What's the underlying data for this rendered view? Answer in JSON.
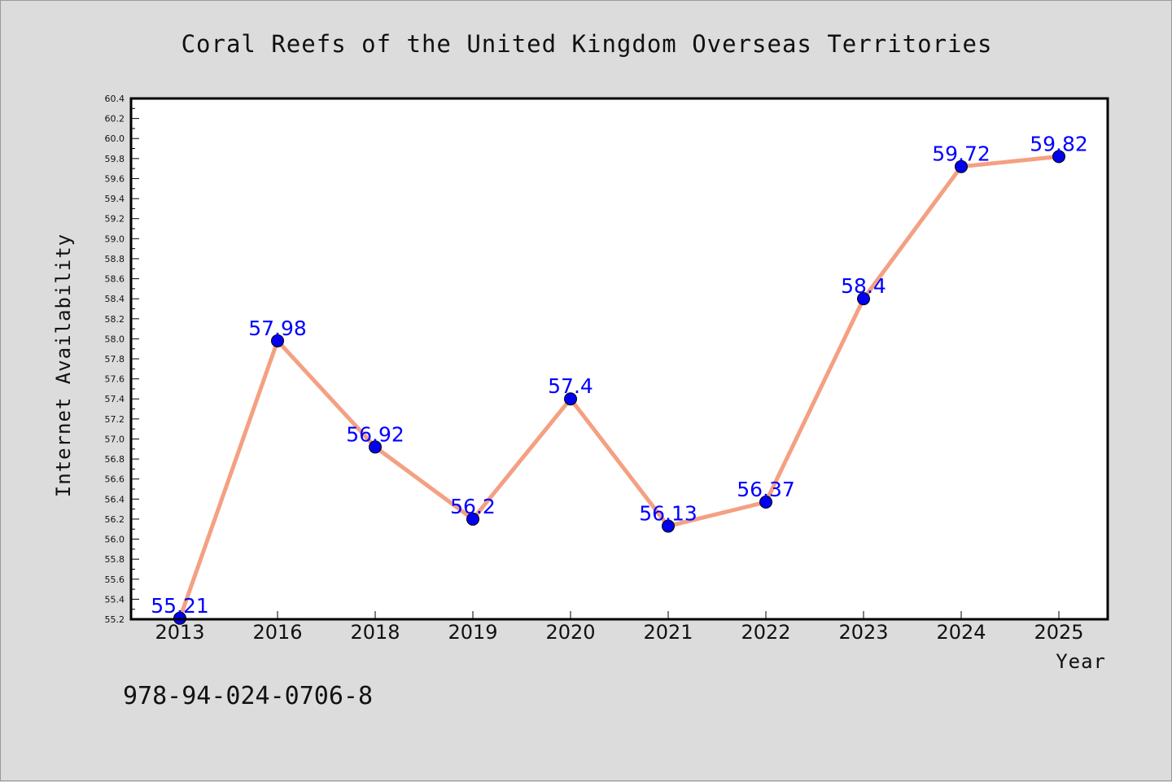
{
  "chart_data": {
    "type": "line",
    "title": "Coral Reefs of the United Kingdom Overseas Territories",
    "xlabel": "Year",
    "ylabel": "Internet Availability",
    "categories": [
      "2013",
      "2016",
      "2018",
      "2019",
      "2020",
      "2021",
      "2022",
      "2023",
      "2024",
      "2025"
    ],
    "series": [
      {
        "values": [
          55.21,
          57.98,
          56.92,
          56.2,
          57.4,
          56.13,
          56.37,
          58.4,
          59.72,
          59.82
        ],
        "labels": [
          "55.21",
          "57.98",
          "56.92",
          "56.2",
          "57.4",
          "56.13",
          "56.37",
          "58.4",
          "59.72",
          "59.82"
        ],
        "line_color": "#f4a082",
        "marker_color": "#0000ee"
      }
    ],
    "ylim": [
      55.2,
      60.4
    ],
    "yticks": [
      "55.2",
      "55.4",
      "55.6",
      "55.8",
      "56.0",
      "56.2",
      "56.4",
      "56.6",
      "56.8",
      "57.0",
      "57.2",
      "57.4",
      "57.6",
      "57.8",
      "58.0",
      "58.2",
      "58.4",
      "58.6",
      "58.8",
      "59.0",
      "59.2",
      "59.4",
      "59.6",
      "59.8",
      "60.0",
      "60.2",
      "60.4"
    ],
    "grid": false,
    "label_color": "#0000ff"
  },
  "footer": {
    "isbn": "978-94-024-0706-8"
  }
}
